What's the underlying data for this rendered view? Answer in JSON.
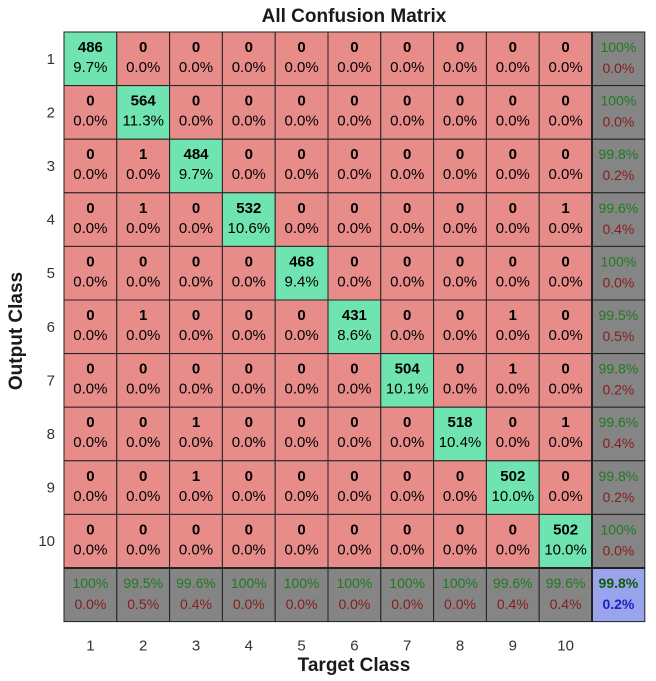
{
  "chart_data": {
    "type": "heatmap",
    "title": "All Confusion Matrix",
    "xlabel": "Target Class",
    "ylabel": "Output Class",
    "x_tick_labels": [
      "1",
      "2",
      "3",
      "4",
      "5",
      "6",
      "7",
      "8",
      "9",
      "10"
    ],
    "y_tick_labels": [
      "1",
      "2",
      "3",
      "4",
      "5",
      "6",
      "7",
      "8",
      "9",
      "10"
    ],
    "counts": [
      [
        486,
        0,
        0,
        0,
        0,
        0,
        0,
        0,
        0,
        0
      ],
      [
        0,
        564,
        0,
        0,
        0,
        0,
        0,
        0,
        0,
        0
      ],
      [
        0,
        1,
        484,
        0,
        0,
        0,
        0,
        0,
        0,
        0
      ],
      [
        0,
        1,
        0,
        532,
        0,
        0,
        0,
        0,
        0,
        1
      ],
      [
        0,
        0,
        0,
        0,
        468,
        0,
        0,
        0,
        0,
        0
      ],
      [
        0,
        1,
        0,
        0,
        0,
        431,
        0,
        0,
        1,
        0
      ],
      [
        0,
        0,
        0,
        0,
        0,
        0,
        504,
        0,
        1,
        0
      ],
      [
        0,
        0,
        1,
        0,
        0,
        0,
        0,
        518,
        0,
        1
      ],
      [
        0,
        0,
        1,
        0,
        0,
        0,
        0,
        0,
        502,
        0
      ],
      [
        0,
        0,
        0,
        0,
        0,
        0,
        0,
        0,
        0,
        502
      ]
    ],
    "percentages": [
      [
        "9.7%",
        "0.0%",
        "0.0%",
        "0.0%",
        "0.0%",
        "0.0%",
        "0.0%",
        "0.0%",
        "0.0%",
        "0.0%"
      ],
      [
        "0.0%",
        "11.3%",
        "0.0%",
        "0.0%",
        "0.0%",
        "0.0%",
        "0.0%",
        "0.0%",
        "0.0%",
        "0.0%"
      ],
      [
        "0.0%",
        "0.0%",
        "9.7%",
        "0.0%",
        "0.0%",
        "0.0%",
        "0.0%",
        "0.0%",
        "0.0%",
        "0.0%"
      ],
      [
        "0.0%",
        "0.0%",
        "0.0%",
        "10.6%",
        "0.0%",
        "0.0%",
        "0.0%",
        "0.0%",
        "0.0%",
        "0.0%"
      ],
      [
        "0.0%",
        "0.0%",
        "0.0%",
        "0.0%",
        "9.4%",
        "0.0%",
        "0.0%",
        "0.0%",
        "0.0%",
        "0.0%"
      ],
      [
        "0.0%",
        "0.0%",
        "0.0%",
        "0.0%",
        "0.0%",
        "8.6%",
        "0.0%",
        "0.0%",
        "0.0%",
        "0.0%"
      ],
      [
        "0.0%",
        "0.0%",
        "0.0%",
        "0.0%",
        "0.0%",
        "0.0%",
        "10.1%",
        "0.0%",
        "0.0%",
        "0.0%"
      ],
      [
        "0.0%",
        "0.0%",
        "0.0%",
        "0.0%",
        "0.0%",
        "0.0%",
        "0.0%",
        "10.4%",
        "0.0%",
        "0.0%"
      ],
      [
        "0.0%",
        "0.0%",
        "0.0%",
        "0.0%",
        "0.0%",
        "0.0%",
        "0.0%",
        "0.0%",
        "10.0%",
        "0.0%"
      ],
      [
        "0.0%",
        "0.0%",
        "0.0%",
        "0.0%",
        "0.0%",
        "0.0%",
        "0.0%",
        "0.0%",
        "0.0%",
        "10.0%"
      ]
    ],
    "row_summary": [
      [
        "100%",
        "0.0%"
      ],
      [
        "100%",
        "0.0%"
      ],
      [
        "99.8%",
        "0.2%"
      ],
      [
        "99.6%",
        "0.4%"
      ],
      [
        "100%",
        "0.0%"
      ],
      [
        "99.5%",
        "0.5%"
      ],
      [
        "99.8%",
        "0.2%"
      ],
      [
        "99.6%",
        "0.4%"
      ],
      [
        "99.8%",
        "0.2%"
      ],
      [
        "100%",
        "0.0%"
      ]
    ],
    "column_summary": [
      [
        "100%",
        "0.0%"
      ],
      [
        "99.5%",
        "0.5%"
      ],
      [
        "99.6%",
        "0.4%"
      ],
      [
        "100%",
        "0.0%"
      ],
      [
        "100%",
        "0.0%"
      ],
      [
        "100%",
        "0.0%"
      ],
      [
        "100%",
        "0.0%"
      ],
      [
        "100%",
        "0.0%"
      ],
      [
        "99.6%",
        "0.4%"
      ],
      [
        "99.6%",
        "0.4%"
      ]
    ],
    "overall": [
      "99.8%",
      "0.2%"
    ],
    "colors": {
      "correct_cell": "#6fe3b0",
      "error_cell": "#e88c8a",
      "summary_cell": "#858585",
      "overall_cell": "#9aa4ec",
      "summary_correct_text": "#1f7a1f",
      "summary_error_text": "#8a1c1c",
      "overall_correct_text": "#0f5a0f",
      "overall_error_text": "#2020c0",
      "grid_line": "#222222"
    }
  }
}
